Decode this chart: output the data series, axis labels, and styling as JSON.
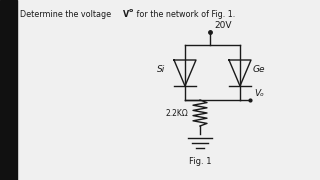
{
  "title_part1": "Determine the voltage ",
  "title_bold": "V",
  "title_sub": "o",
  "title_part2": " for the network of Fig. 1.",
  "fig_label": "Fig. 1",
  "supply_voltage": "20V",
  "diode_left_label": "Si",
  "diode_right_label": "Ge",
  "resistor_label": "2.2KΩ",
  "output_label": "Vₒ",
  "bg_color": "#f0f0f0",
  "line_color": "#1a1a1a",
  "left_bar_color": "#111111",
  "left_bar_width": 0.055
}
